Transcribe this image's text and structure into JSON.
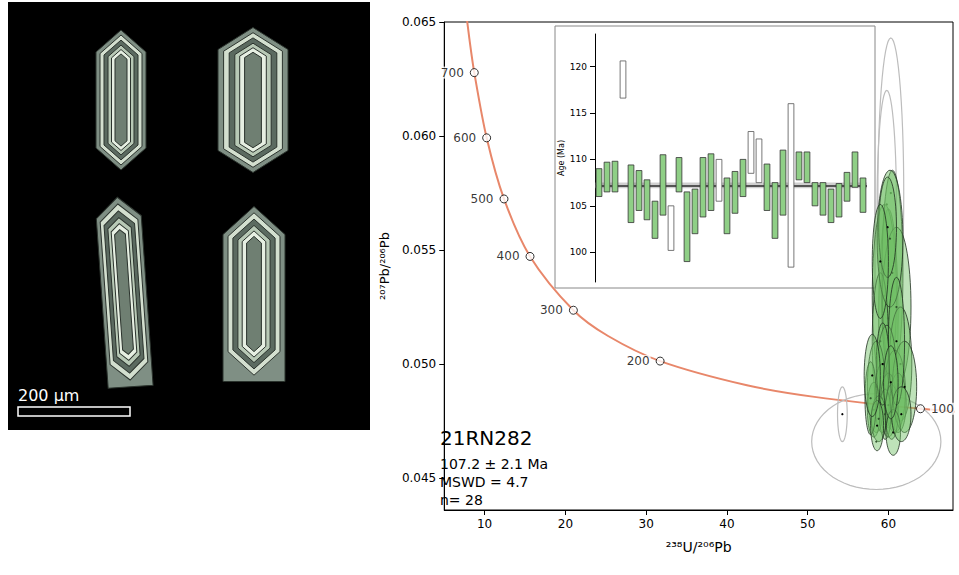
{
  "image_panel": {
    "scale_bar": "200 µm"
  },
  "chart_data": [
    {
      "type": "scatter",
      "title": "21RN282",
      "annotations": [
        "107.2 ± 2.1 Ma",
        "MSWD = 4.7",
        "n= 28"
      ],
      "x_label": "²³⁸U/²⁰⁶Pb",
      "y_label": "²⁰⁷Pb/²⁰⁶Pb",
      "xlim": [
        5,
        68
      ],
      "xticks": [
        10,
        20,
        30,
        40,
        50,
        60
      ],
      "ylim": [
        0.0436,
        0.065
      ],
      "yticks": [
        0.045,
        {
          "value": 0.05,
          "label": "0.050"
        },
        0.055,
        {
          "value": 0.06,
          "label": "0.060"
        },
        0.065
      ],
      "concordia": {
        "color": "#e8876a",
        "x": [
          7.568,
          8.105,
          8.718,
          10.25,
          12.4,
          15.62,
          20.99,
          25.29,
          31.73,
          42.48,
          51.07,
          63.97,
          71.13
        ],
        "y": [
          0.06582,
          0.06428,
          0.06278,
          0.05992,
          0.05724,
          0.05472,
          0.05236,
          0.05123,
          0.05013,
          0.04907,
          0.04855,
          0.04804,
          0.04784
        ]
      },
      "age_marks": {
        "marker": "circle",
        "labels": [
          "700",
          "600",
          "500",
          "400",
          "300",
          "200",
          "100"
        ],
        "x": [
          8.718,
          10.25,
          12.4,
          15.62,
          20.99,
          31.73,
          63.97
        ],
        "y": [
          0.06278,
          0.05992,
          0.05724,
          0.05472,
          0.05236,
          0.05013,
          0.04804
        ]
      },
      "ellipses": {
        "accepted": {
          "color": "#6fbf63",
          "x": [
            60.0,
            59.5,
            60.5,
            61.0,
            59.0,
            60.2,
            61.5,
            59.8,
            58.5,
            60.8,
            59.2,
            60.0,
            58.2,
            61.2,
            59.6,
            58.8,
            60.4,
            62.0,
            57.8,
            61.0,
            59.3,
            60.6,
            58.6,
            61.6,
            59.9,
            59.0,
            60.3,
            58.0
          ],
          "y": [
            0.052,
            0.053,
            0.054,
            0.0525,
            0.051,
            0.0555,
            0.05,
            0.0495,
            0.049,
            0.0488,
            0.0485,
            0.0482,
            0.048,
            0.0483,
            0.0478,
            0.0476,
            0.0479,
            0.049,
            0.0485,
            0.051,
            0.05,
            0.047,
            0.0473,
            0.0478,
            0.056,
            0.0545,
            0.0492,
            0.0495
          ],
          "x_err": [
            1.2,
            1.5,
            1.3,
            1.8,
            1.0,
            1.6,
            1.4,
            1.2,
            1.1,
            1.3,
            0.9,
            1.0,
            0.8,
            1.0,
            0.7,
            0.9,
            0.8,
            1.5,
            0.7,
            1.0,
            0.8,
            0.9,
            0.8,
            1.2,
            1.1,
            1.0,
            0.9,
            1.0
          ],
          "y_err": [
            0.0048,
            0.004,
            0.0045,
            0.0035,
            0.003,
            0.003,
            0.0025,
            0.0022,
            0.002,
            0.0018,
            0.0015,
            0.0014,
            0.0012,
            0.0013,
            0.0011,
            0.001,
            0.0012,
            0.002,
            0.0016,
            0.0028,
            0.0018,
            0.001,
            0.0011,
            0.0012,
            0.0022,
            0.0025,
            0.0016,
            0.0018
          ]
        },
        "rejected": {
          "color": "#bdbdbd",
          "x": [
            60.3,
            59.8,
            54.3,
            58.5
          ],
          "y": [
            0.0575,
            0.057,
            0.0478,
            0.0466
          ],
          "x_err": [
            1.6,
            1.2,
            0.6,
            8.0
          ],
          "y_err": [
            0.0068,
            0.005,
            0.0012,
            0.0021
          ]
        }
      }
    },
    {
      "type": "bar",
      "y_label": "Age (Ma)",
      "tick_labels": "y",
      "ylim": [
        96.8,
        123.5
      ],
      "yticks": [
        100,
        105,
        110,
        115,
        120
      ],
      "low": [
        106.0,
        106.5,
        106.5,
        116.6,
        103.2,
        104.5,
        103.5,
        101.5,
        104.0,
        100.2,
        106.5,
        99.0,
        102.0,
        103.8,
        104.5,
        105.5,
        102.0,
        104.2,
        106.0,
        108.5,
        107.5,
        104.5,
        101.5,
        104.0,
        98.4,
        107.8,
        107.5,
        105.0,
        104.0,
        103.2,
        103.8,
        105.5,
        107.0,
        104.3
      ],
      "high": [
        109.0,
        109.7,
        109.8,
        120.6,
        109.4,
        108.8,
        107.8,
        105.5,
        110.5,
        105.0,
        110.2,
        106.5,
        106.8,
        110.2,
        110.6,
        110.0,
        108.0,
        108.7,
        110.0,
        113.0,
        112.2,
        109.5,
        107.5,
        111.0,
        116.0,
        110.8,
        110.8,
        107.5,
        107.5,
        106.8,
        107.4,
        108.6,
        110.8,
        108.0
      ],
      "colors": [
        "#8fcf86",
        "#8fcf86",
        "#8fcf86",
        "#ffffff",
        "#8fcf86",
        "#8fcf86",
        "#8fcf86",
        "#8fcf86",
        "#8fcf86",
        "#ffffff",
        "#8fcf86",
        "#8fcf86",
        "#8fcf86",
        "#8fcf86",
        "#8fcf86",
        "#ffffff",
        "#8fcf86",
        "#8fcf86",
        "#8fcf86",
        "#ffffff",
        "#ffffff",
        "#8fcf86",
        "#8fcf86",
        "#8fcf86",
        "#ffffff",
        "#8fcf86",
        "#8fcf86",
        "#8fcf86",
        "#8fcf86",
        "#8fcf86",
        "#8fcf86",
        "#8fcf86",
        "#8fcf86",
        "#8fcf86"
      ],
      "mean": 107.2,
      "mean_band": [
        106.9,
        107.5
      ]
    }
  ]
}
